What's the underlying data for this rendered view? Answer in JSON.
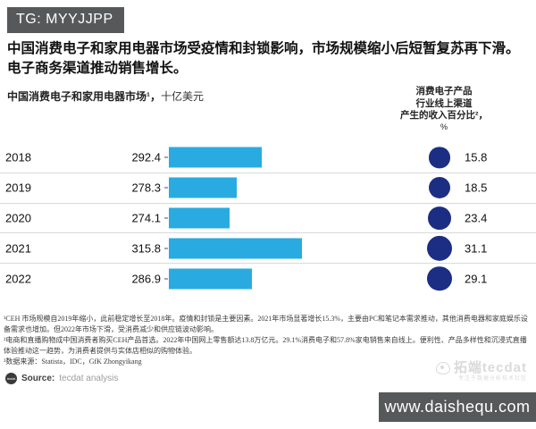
{
  "badge": {
    "label": "TG: MYYJJPP"
  },
  "title": {
    "text": "中国消费电子和家用电器市场受疫情和封锁影响，市场规模缩小后短暂复苏再下滑。电子商务渠道推动销售增长。"
  },
  "chart_data": {
    "type": "bar",
    "left_axis_title": "中国消费电子和家用电器市场¹，",
    "left_axis_unit": "十亿美元",
    "right_axis_title_lines": [
      "消费电子产品",
      "行业线上渠道",
      "产生的收入百分比²，",
      "%"
    ],
    "categories": [
      "2018",
      "2019",
      "2020",
      "2021",
      "2022"
    ],
    "series": [
      {
        "name": "中国消费电子和家用电器市场（十亿美元）",
        "type": "bar",
        "color": "#29abe2",
        "values": [
          292.4,
          278.3,
          274.1,
          315.8,
          286.9
        ]
      },
      {
        "name": "消费电子产品行业线上渠道产生的收入百分比（%）",
        "type": "bubble",
        "color": "#1b2e83",
        "values": [
          15.8,
          18.5,
          23.4,
          31.1,
          29.1
        ]
      }
    ],
    "grid": "horizontal row separators",
    "legend": "none"
  },
  "footnotes": {
    "items": [
      "¹CEH 市场规模自2019年缩小，此前稳定增长至2018年。疫情和封锁是主要因素。2021年市场显著增长15.3%，主要由PC和笔记本需求推动，其他消费电器和家庭娱乐设备需求也增加。但2022年市场下滑，受消费减少和供应链波动影响。",
      "²电商和直播购物成中国消费者购买CEH产品首选。2022年中国网上零售额达13.8万亿元。29.1%消费电子和57.8%家电销售来自线上。便利性、产品多样性和沉浸式直播体验推动这一趋势，为消费者提供与实体店相似的购物体验。",
      "³数据来源：Statista，IDC，GfK Zhongyikang"
    ]
  },
  "source": {
    "label": "Source:",
    "value": "tecdat analysis",
    "logo_text": "tecdat"
  },
  "watermark": {
    "brand": "拓端tecdat",
    "tagline": "专注于数据分析技术社区"
  },
  "url_badge": {
    "text": "www.daishequ.com"
  }
}
